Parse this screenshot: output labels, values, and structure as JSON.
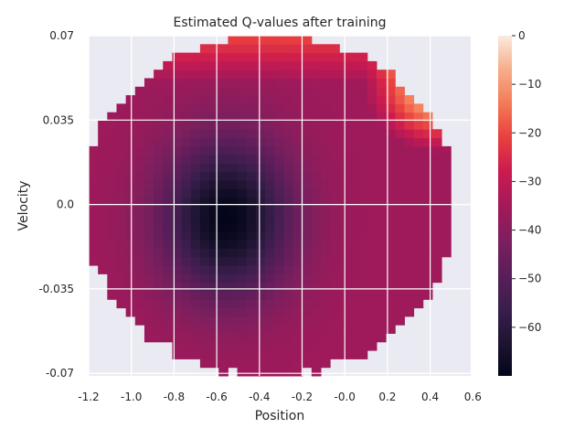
{
  "chart_data": {
    "type": "heatmap",
    "title": "Estimated Q-values after training",
    "xlabel": "Position",
    "ylabel": "Velocity",
    "xlim": [
      -1.2,
      0.6
    ],
    "ylim": [
      -0.07,
      0.07
    ],
    "x_ticks": [
      "-1.2",
      "-1.0",
      "-0.8",
      "-0.6",
      "-0.4",
      "-0.2",
      "-0.0",
      "0.2",
      "0.4",
      "0.6"
    ],
    "y_ticks": [
      "0.07",
      "0.035",
      "0.0",
      "-0.035",
      "-0.07"
    ],
    "colorbar": {
      "range": [
        -70,
        0
      ],
      "ticks": [
        "0",
        "−10",
        "−20",
        "−30",
        "−40",
        "−50",
        "−60"
      ],
      "colormap": "rocket"
    },
    "grid": true,
    "background": "#eaeaf2",
    "grid_shape": [
      40,
      40
    ],
    "visited_region": "ellipse centered near position -0.35, velocity 0.0; truncated at position 0.5",
    "minimum": {
      "position": -0.55,
      "velocity": -0.005,
      "value": -70
    },
    "high_values": "near 0 at position 0.3 to 0.5 with positive velocity"
  }
}
